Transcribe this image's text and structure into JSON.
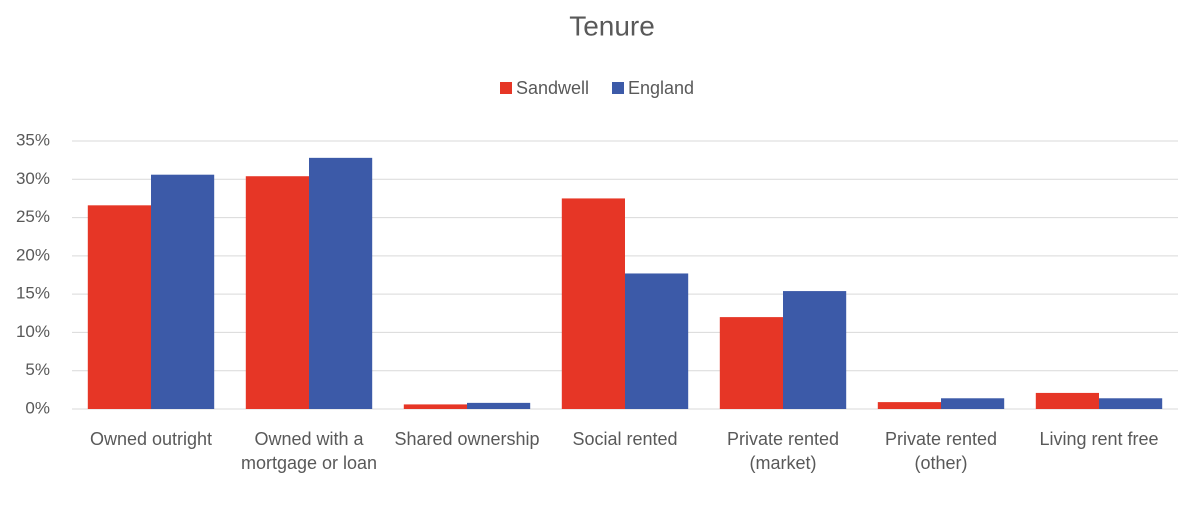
{
  "chart_data": {
    "type": "bar",
    "title": "Tenure",
    "categories": [
      "Owned outright",
      "Owned with a mortgage or loan",
      "Shared ownership",
      "Social rented",
      "Private rented (market)",
      "Private rented (other)",
      "Living rent free"
    ],
    "series": [
      {
        "name": "Sandwell",
        "color": "#e63626",
        "values": [
          26.6,
          30.4,
          0.6,
          27.5,
          12.0,
          0.9,
          2.1
        ]
      },
      {
        "name": "England",
        "color": "#3c5aa8",
        "values": [
          30.6,
          32.8,
          0.8,
          17.7,
          15.4,
          1.4,
          1.4
        ]
      }
    ],
    "ylim": [
      0,
      35
    ],
    "yticks": [
      {
        "value": 0,
        "label": "0%"
      },
      {
        "value": 5,
        "label": "5%"
      },
      {
        "value": 10,
        "label": "10%"
      },
      {
        "value": 15,
        "label": "15%"
      },
      {
        "value": 20,
        "label": "20%"
      },
      {
        "value": 25,
        "label": "25%"
      },
      {
        "value": 30,
        "label": "30%"
      },
      {
        "value": 35,
        "label": "35%"
      }
    ],
    "grid": true,
    "legend": "top"
  }
}
